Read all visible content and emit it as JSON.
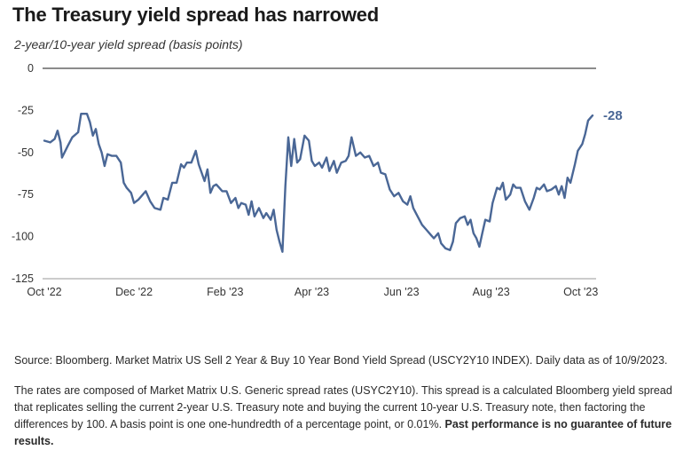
{
  "title": "The Treasury yield spread has narrowed",
  "subtitle": "2-year/10-year yield spread (basis points)",
  "source": "Source: Bloomberg. Market Matrix US Sell 2 Year & Buy 10 Year Bond Yield Spread (USCY2Y10 INDEX). Daily data as of 10/9/2023.",
  "description": "The rates are composed of Market Matrix U.S. Generic spread rates (USYC2Y10). This spread is a calculated Bloomberg yield spread that replicates selling the current 2-year U.S. Treasury note and buying the current 10-year U.S. Treasury note, then factoring the differences by 100. A basis point is one one-hundredth of a percentage point, or 0.01%.",
  "disclaimer": "Past performance is no guarantee of future results.",
  "colors": {
    "line": "#4a6796",
    "end_label": "#4a6796",
    "zero_line": "#666666",
    "axis": "#999999"
  },
  "chart_data": {
    "type": "line",
    "title": "The Treasury yield spread has narrowed",
    "ylabel": "2-year/10-year yield spread (basis points)",
    "ylim": [
      -125,
      0
    ],
    "yticks": [
      0,
      -25,
      -50,
      -75,
      -100,
      -125
    ],
    "xlim": [
      "2022-10-01",
      "2023-10-09"
    ],
    "xticks": [
      {
        "date": "2022-10-01",
        "label": "Oct '22"
      },
      {
        "date": "2022-12-01",
        "label": "Dec '22"
      },
      {
        "date": "2023-02-01",
        "label": "Feb '23"
      },
      {
        "date": "2023-04-01",
        "label": "Apr '23"
      },
      {
        "date": "2023-06-01",
        "label": "Jun '23"
      },
      {
        "date": "2023-08-01",
        "label": "Aug '23"
      },
      {
        "date": "2023-10-01",
        "label": "Oct '23"
      }
    ],
    "end_label": "-28",
    "grid": false,
    "series": [
      {
        "points": [
          [
            "2022-10-01",
            -43
          ],
          [
            "2022-10-05",
            -44
          ],
          [
            "2022-10-08",
            -42
          ],
          [
            "2022-10-10",
            -37
          ],
          [
            "2022-10-12",
            -44
          ],
          [
            "2022-10-13",
            -53
          ],
          [
            "2022-10-17",
            -46
          ],
          [
            "2022-10-20",
            -41
          ],
          [
            "2022-10-24",
            -38
          ],
          [
            "2022-10-26",
            -27
          ],
          [
            "2022-10-30",
            -27
          ],
          [
            "2022-11-01",
            -32
          ],
          [
            "2022-11-03",
            -40
          ],
          [
            "2022-11-05",
            -36
          ],
          [
            "2022-11-07",
            -45
          ],
          [
            "2022-11-09",
            -50
          ],
          [
            "2022-11-11",
            -58
          ],
          [
            "2022-11-13",
            -51
          ],
          [
            "2022-11-16",
            -52
          ],
          [
            "2022-11-19",
            -52
          ],
          [
            "2022-11-22",
            -56
          ],
          [
            "2022-11-24",
            -68
          ],
          [
            "2022-11-26",
            -71
          ],
          [
            "2022-11-29",
            -74
          ],
          [
            "2022-12-01",
            -80
          ],
          [
            "2022-12-04",
            -78
          ],
          [
            "2022-12-07",
            -75
          ],
          [
            "2022-12-09",
            -73
          ],
          [
            "2022-12-12",
            -79
          ],
          [
            "2022-12-15",
            -83
          ],
          [
            "2022-12-19",
            -84
          ],
          [
            "2022-12-21",
            -77
          ],
          [
            "2022-12-24",
            -78
          ],
          [
            "2022-12-27",
            -68
          ],
          [
            "2022-12-30",
            -68
          ],
          [
            "2023-01-02",
            -57
          ],
          [
            "2023-01-04",
            -59
          ],
          [
            "2023-01-06",
            -56
          ],
          [
            "2023-01-09",
            -56
          ],
          [
            "2023-01-12",
            -49
          ],
          [
            "2023-01-14",
            -57
          ],
          [
            "2023-01-18",
            -67
          ],
          [
            "2023-01-20",
            -60
          ],
          [
            "2023-01-22",
            -74
          ],
          [
            "2023-01-24",
            -70
          ],
          [
            "2023-01-26",
            -69
          ],
          [
            "2023-01-28",
            -71
          ],
          [
            "2023-01-30",
            -73
          ],
          [
            "2023-02-02",
            -73
          ],
          [
            "2023-02-05",
            -80
          ],
          [
            "2023-02-08",
            -77
          ],
          [
            "2023-02-10",
            -83
          ],
          [
            "2023-02-12",
            -80
          ],
          [
            "2023-02-15",
            -81
          ],
          [
            "2023-02-17",
            -87
          ],
          [
            "2023-02-19",
            -79
          ],
          [
            "2023-02-21",
            -88
          ],
          [
            "2023-02-24",
            -83
          ],
          [
            "2023-02-27",
            -89
          ],
          [
            "2023-03-01",
            -86
          ],
          [
            "2023-03-04",
            -90
          ],
          [
            "2023-03-06",
            -84
          ],
          [
            "2023-03-08",
            -96
          ],
          [
            "2023-03-10",
            -103
          ],
          [
            "2023-03-12",
            -109
          ],
          [
            "2023-03-14",
            -70
          ],
          [
            "2023-03-16",
            -41
          ],
          [
            "2023-03-18",
            -58
          ],
          [
            "2023-03-20",
            -42
          ],
          [
            "2023-03-22",
            -56
          ],
          [
            "2023-03-24",
            -54
          ],
          [
            "2023-03-27",
            -40
          ],
          [
            "2023-03-30",
            -43
          ],
          [
            "2023-04-01",
            -55
          ],
          [
            "2023-04-03",
            -58
          ],
          [
            "2023-04-06",
            -56
          ],
          [
            "2023-04-08",
            -59
          ],
          [
            "2023-04-11",
            -53
          ],
          [
            "2023-04-13",
            -61
          ],
          [
            "2023-04-16",
            -55
          ],
          [
            "2023-04-18",
            -62
          ],
          [
            "2023-04-21",
            -56
          ],
          [
            "2023-04-24",
            -55
          ],
          [
            "2023-04-26",
            -52
          ],
          [
            "2023-04-28",
            -41
          ],
          [
            "2023-05-01",
            -52
          ],
          [
            "2023-05-04",
            -50
          ],
          [
            "2023-05-07",
            -53
          ],
          [
            "2023-05-10",
            -52
          ],
          [
            "2023-05-13",
            -58
          ],
          [
            "2023-05-16",
            -56
          ],
          [
            "2023-05-18",
            -62
          ],
          [
            "2023-05-21",
            -63
          ],
          [
            "2023-05-24",
            -72
          ],
          [
            "2023-05-27",
            -76
          ],
          [
            "2023-05-30",
            -74
          ],
          [
            "2023-06-02",
            -79
          ],
          [
            "2023-06-05",
            -81
          ],
          [
            "2023-06-07",
            -76
          ],
          [
            "2023-06-09",
            -83
          ],
          [
            "2023-06-12",
            -88
          ],
          [
            "2023-06-15",
            -93
          ],
          [
            "2023-06-18",
            -96
          ],
          [
            "2023-06-21",
            -99
          ],
          [
            "2023-06-23",
            -101
          ],
          [
            "2023-06-26",
            -98
          ],
          [
            "2023-06-28",
            -104
          ],
          [
            "2023-07-01",
            -107
          ],
          [
            "2023-07-04",
            -108
          ],
          [
            "2023-07-06",
            -103
          ],
          [
            "2023-07-08",
            -92
          ],
          [
            "2023-07-11",
            -89
          ],
          [
            "2023-07-14",
            -88
          ],
          [
            "2023-07-16",
            -93
          ],
          [
            "2023-07-18",
            -90
          ],
          [
            "2023-07-20",
            -98
          ],
          [
            "2023-07-22",
            -101
          ],
          [
            "2023-07-24",
            -106
          ],
          [
            "2023-07-26",
            -98
          ],
          [
            "2023-07-28",
            -90
          ],
          [
            "2023-07-31",
            -91
          ],
          [
            "2023-08-02",
            -80
          ],
          [
            "2023-08-05",
            -71
          ],
          [
            "2023-08-07",
            -72
          ],
          [
            "2023-08-09",
            -68
          ],
          [
            "2023-08-11",
            -78
          ],
          [
            "2023-08-14",
            -75
          ],
          [
            "2023-08-16",
            -69
          ],
          [
            "2023-08-18",
            -71
          ],
          [
            "2023-08-21",
            -71
          ],
          [
            "2023-08-24",
            -79
          ],
          [
            "2023-08-27",
            -84
          ],
          [
            "2023-08-30",
            -77
          ],
          [
            "2023-09-01",
            -71
          ],
          [
            "2023-09-03",
            -72
          ],
          [
            "2023-09-06",
            -69
          ],
          [
            "2023-09-08",
            -73
          ],
          [
            "2023-09-11",
            -72
          ],
          [
            "2023-09-14",
            -70
          ],
          [
            "2023-09-16",
            -75
          ],
          [
            "2023-09-18",
            -70
          ],
          [
            "2023-09-20",
            -77
          ],
          [
            "2023-09-22",
            -65
          ],
          [
            "2023-09-24",
            -68
          ],
          [
            "2023-09-27",
            -57
          ],
          [
            "2023-09-29",
            -49
          ],
          [
            "2023-10-02",
            -45
          ],
          [
            "2023-10-04",
            -39
          ],
          [
            "2023-10-06",
            -31
          ],
          [
            "2023-10-09",
            -28
          ]
        ]
      }
    ]
  }
}
